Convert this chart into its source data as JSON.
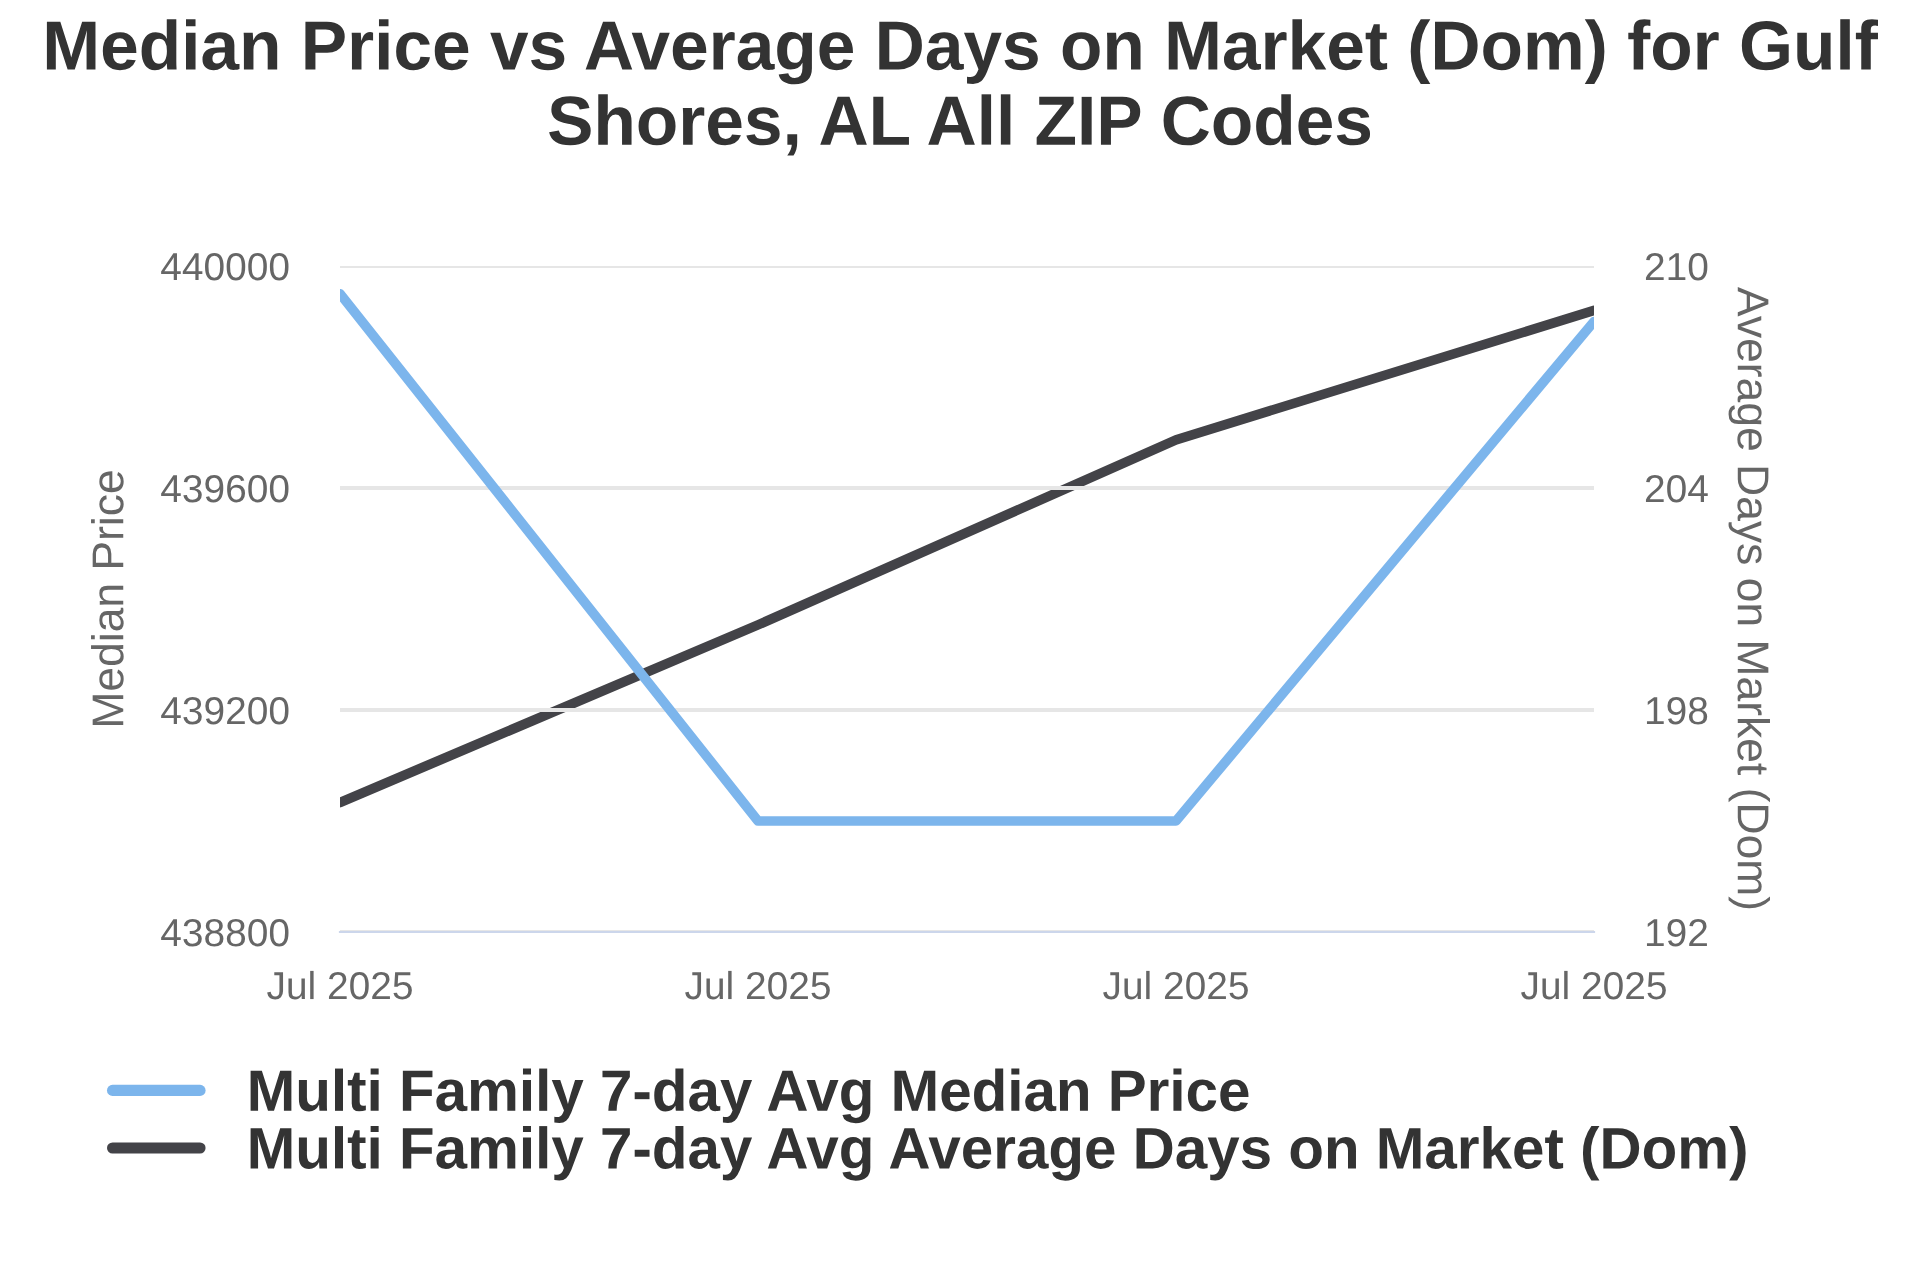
{
  "chart_data": {
    "type": "line",
    "title": "Median Price vs Average Days on Market (Dom) for Gulf Shores, AL All ZIP Codes",
    "categories": [
      "Jul 2025",
      "Jul 2025",
      "Jul 2025",
      "Jul 2025"
    ],
    "series": [
      {
        "name": "Multi Family 7-day Avg Median Price",
        "color": "#7cb5ec",
        "values": [
          439950,
          439000,
          439000,
          439900
        ]
      },
      {
        "name": "Multi Family 7-day Avg Average Days on Market (Dom)",
        "color": "#434348",
        "values": [
          195.5,
          200.3,
          205.3,
          208.8
        ],
        "axis": "y2"
      }
    ],
    "ylabel": "Median Price",
    "y2label": "Average Days on Market (Dom)",
    "ylim": [
      438800,
      440000
    ],
    "yticks": [
      438800,
      439200,
      439600,
      440000
    ],
    "y2lim": [
      192,
      210
    ],
    "y2ticks": [
      192,
      198,
      204,
      210
    ],
    "grid": "y",
    "legend": "bottom",
    "marker": "none",
    "line_style": "solid"
  }
}
